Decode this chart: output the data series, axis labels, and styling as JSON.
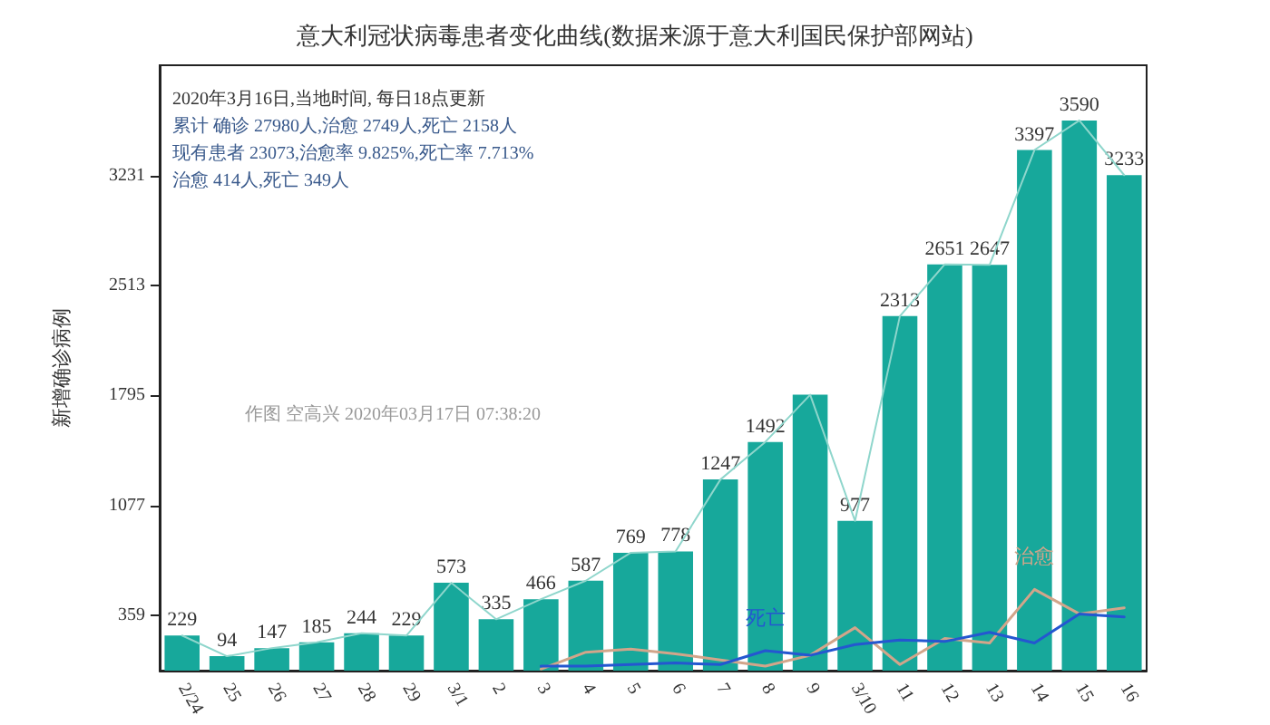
{
  "chart_data": {
    "type": "bar",
    "title": "意大利冠状病毒患者变化曲线(数据来源于意大利国民保护部网站)",
    "ylabel": "新增确诊病例",
    "categories": [
      "2/24",
      "25",
      "26",
      "27",
      "28",
      "29",
      "3/1",
      "2",
      "3",
      "4",
      "5",
      "6",
      "7",
      "8",
      "9",
      "3/10",
      "11",
      "12",
      "13",
      "14",
      "15",
      "16"
    ],
    "series": [
      {
        "color": "#17a89b",
        "values": [
          229,
          94,
          147,
          185,
          244,
          229,
          573,
          335,
          466,
          587,
          769,
          778,
          1247,
          1492,
          1800,
          977,
          2313,
          2651,
          2647,
          3397,
          3590,
          3233
        ],
        "value_labels": [
          "229",
          "94",
          "147",
          "185",
          "244",
          "229",
          "573",
          "335",
          "466",
          "587",
          "769",
          "778",
          "1247",
          "1492",
          null,
          "977",
          "2313",
          "2651",
          "2647",
          "3397",
          "3590",
          "3233"
        ]
      },
      {
        "type": "line",
        "color": "#8fd6cc",
        "values": [
          229,
          94,
          147,
          185,
          244,
          229,
          573,
          335,
          466,
          587,
          769,
          778,
          1247,
          1492,
          1800,
          977,
          2313,
          2651,
          2647,
          3397,
          3590,
          3233
        ]
      },
      {
        "type": "line",
        "name": "治愈",
        "color": "#d2a58a",
        "values": [
          null,
          null,
          null,
          null,
          null,
          null,
          null,
          null,
          10,
          120,
          140,
          110,
          70,
          30,
          100,
          280,
          40,
          210,
          180,
          530,
          370,
          410
        ]
      },
      {
        "type": "line",
        "name": "死亡",
        "color": "#2457d0",
        "values": [
          null,
          null,
          null,
          null,
          null,
          null,
          null,
          null,
          30,
          30,
          40,
          50,
          40,
          130,
          100,
          170,
          200,
          190,
          250,
          180,
          370,
          350
        ]
      }
    ],
    "ylim": [
      0,
      3950
    ],
    "yticks": [
      359,
      1077,
      1795,
      2513,
      3231
    ],
    "grid": false,
    "legend": false,
    "marker": "none",
    "line_style": "solid",
    "annotations": [
      "2020年3月16日,当地时间, 每日18点更新",
      "累计 确诊 27980人,治愈 2749人,死亡 2158人",
      "现有患者 23073,治愈率 9.825%,死亡率 7.713%",
      "治愈 414人,死亡 349人",
      "作图 空高兴 2020年03月17日 07:38:20"
    ]
  }
}
